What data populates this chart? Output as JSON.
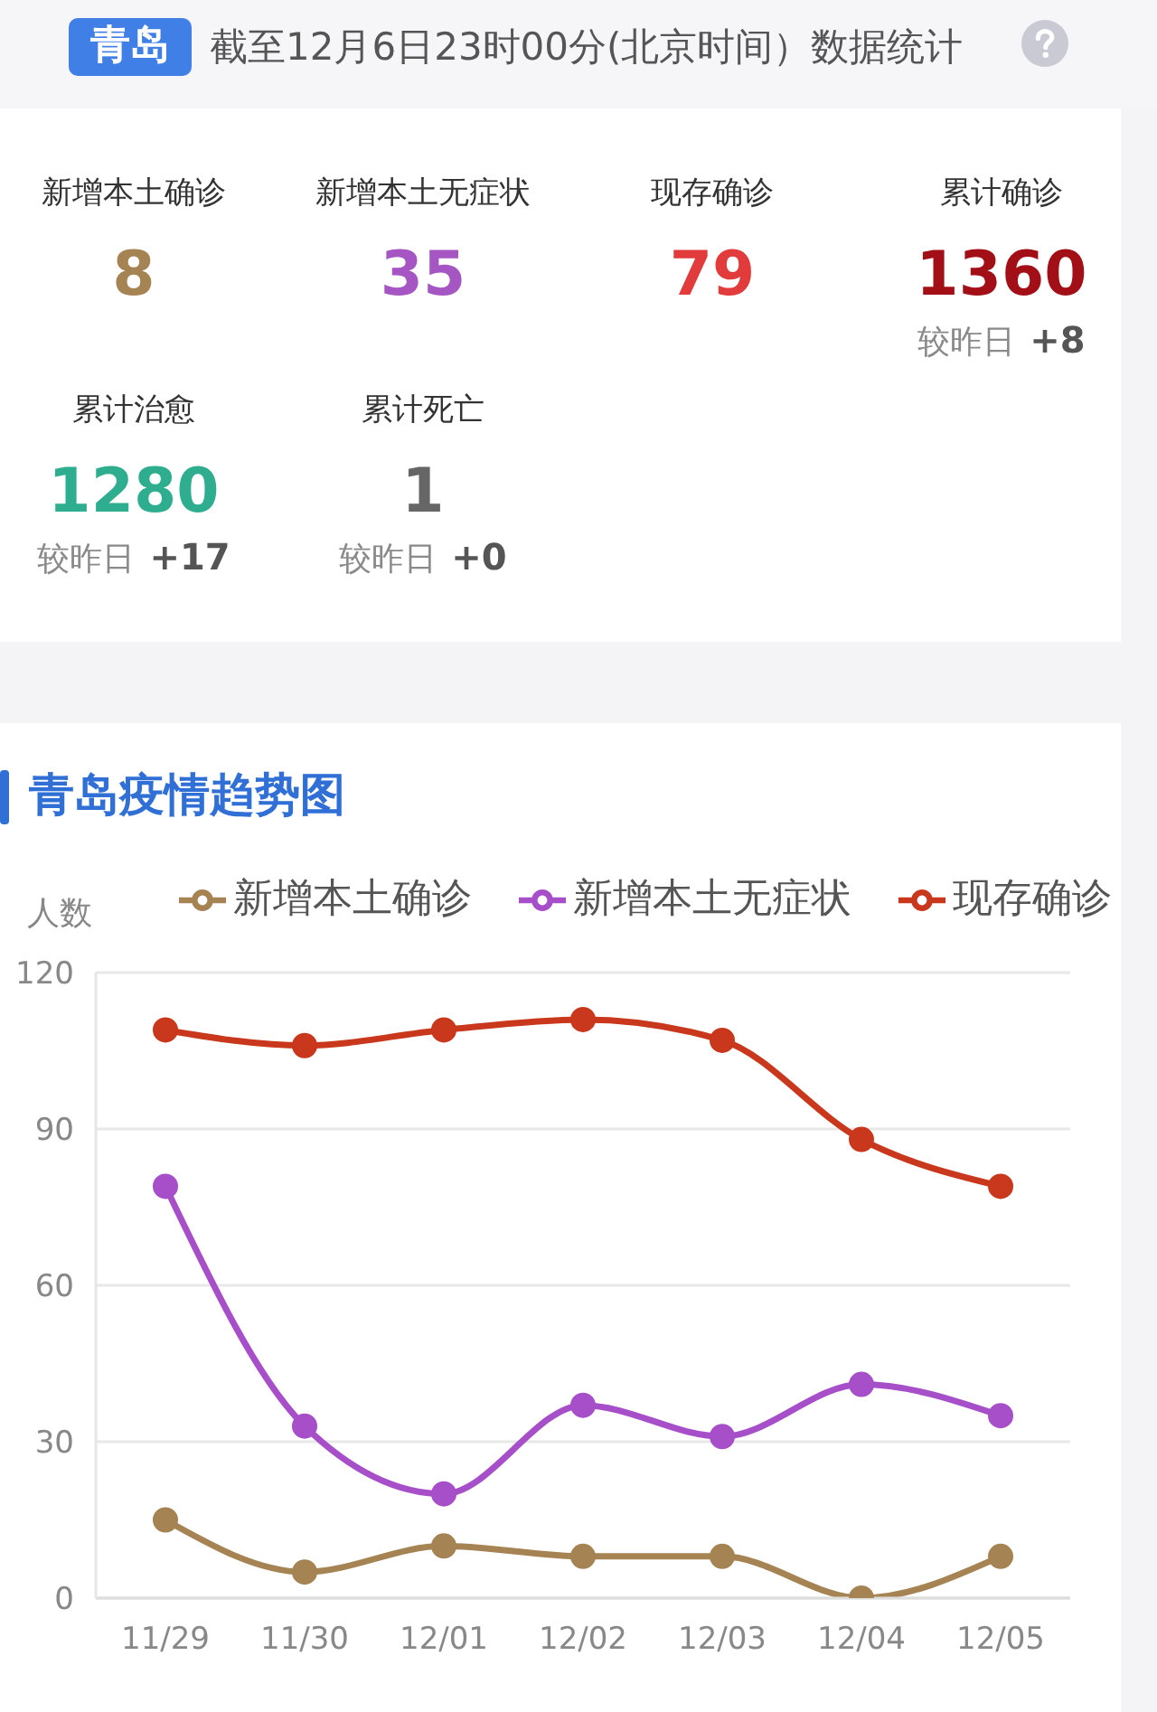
{
  "chart_data": [
    {
      "type": "other",
      "title": "青岛",
      "subtitle": "截至12月6日23时00分(北京时间）数据统计",
      "categories": [
        "新增本土确诊",
        "新增本土无症状",
        "现存确诊",
        "累计确诊",
        "累计治愈",
        "累计死亡"
      ],
      "data_labels": true,
      "series": [
        {
          "values": [
            8,
            35,
            79,
            1360,
            1280,
            1
          ],
          "colors": [
            "#a68353",
            "#a556c2",
            "#e23b3b",
            "#a30f16",
            "#2fae8f",
            "#666666"
          ]
        },
        {
          "name": "较昨日",
          "values": [
            null,
            null,
            null,
            8,
            17,
            0
          ],
          "value_labels": [
            null,
            null,
            null,
            "+8",
            "+17",
            "+0"
          ]
        }
      ]
    },
    {
      "type": "line",
      "title": "青岛疫情趋势图",
      "ylabel": "人数",
      "categories": [
        "11/29",
        "11/30",
        "12/01",
        "12/02",
        "12/03",
        "12/04",
        "12/05"
      ],
      "series": [
        {
          "name": "新增本土确诊",
          "color": "#a68353",
          "values": [
            15,
            5,
            10,
            8,
            8,
            0,
            8
          ]
        },
        {
          "name": "新增本土无症状",
          "color": "#a64fc9",
          "values": [
            79,
            33,
            20,
            37,
            31,
            41,
            35
          ]
        },
        {
          "name": "现存确诊",
          "color": "#c9381c",
          "values": [
            109,
            106,
            109,
            111,
            107,
            88,
            79
          ]
        }
      ],
      "ylim": [
        0,
        120
      ],
      "yticks": [
        0,
        30,
        60,
        90,
        120
      ],
      "grid": "y",
      "legend": "top",
      "marker": "circle",
      "line_style": "solid"
    }
  ]
}
